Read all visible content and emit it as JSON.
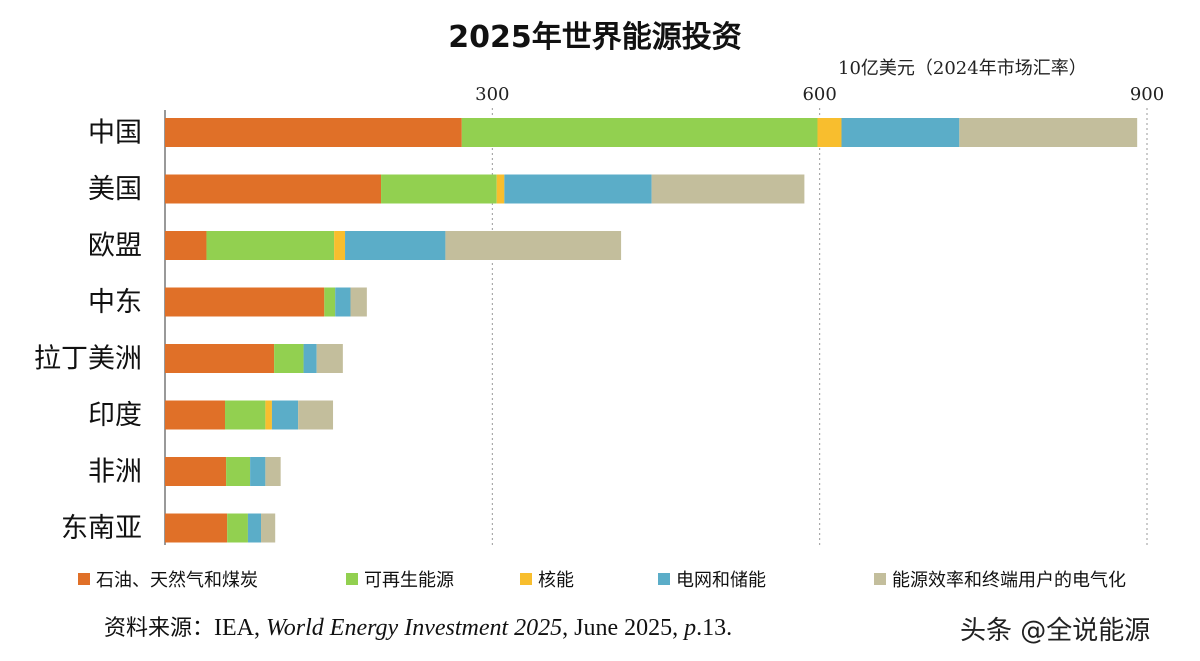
{
  "chart_data": {
    "type": "bar",
    "orientation": "horizontal",
    "stacked": true,
    "title": "2025年世界能源投资",
    "unit_label": "10亿美元（2024年市场汇率）",
    "xlim": [
      0,
      900
    ],
    "xticks": [
      300,
      600,
      900
    ],
    "x_tick_labels": [
      "300",
      "600",
      "900"
    ],
    "categories": [
      "中国",
      "美国",
      "欧盟",
      "中东",
      "拉丁美洲",
      "印度",
      "非洲",
      "东南亚"
    ],
    "series": [
      {
        "name": "石油、天然气和煤炭",
        "color": "#E07028",
        "values": [
          272,
          198,
          38,
          146,
          100,
          55,
          56,
          57
        ]
      },
      {
        "name": "可再生能源",
        "color": "#92D050",
        "values": [
          326,
          106,
          117,
          10,
          27,
          37,
          22,
          19
        ]
      },
      {
        "name": "核能",
        "color": "#F8BE2E",
        "values": [
          22,
          7,
          10,
          0,
          0,
          6,
          0,
          0
        ]
      },
      {
        "name": "电网和储能",
        "color": "#5BADC8",
        "values": [
          108,
          135,
          92,
          14,
          12,
          24,
          14,
          12
        ]
      },
      {
        "name": "能源效率和终端用户的电气化",
        "color": "#C3BE9C",
        "values": [
          163,
          140,
          161,
          15,
          24,
          32,
          14,
          13
        ]
      }
    ],
    "grid": "vertical dotted at ticks",
    "legend_position": "bottom"
  },
  "source": {
    "prefix": "资料来源：",
    "text_before": "IEA, ",
    "italic_title": "World Energy Investment 2025",
    "text_middle": ", June 2025, ",
    "italic_p": "p",
    "text_end": ".13."
  },
  "watermark": "头条 @全说能源"
}
